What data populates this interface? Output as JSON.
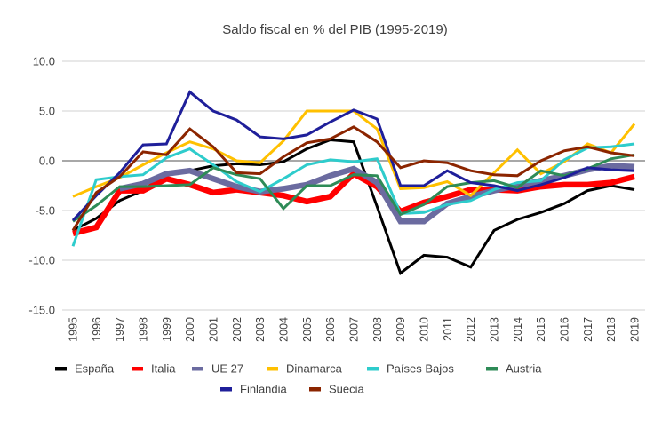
{
  "chart_data": {
    "type": "line",
    "title": "Saldo fiscal en % del PIB (1995-2019)",
    "xlabel": "",
    "ylabel": "",
    "ylim": [
      -15,
      10
    ],
    "yticks": [
      10,
      5,
      0,
      -5,
      -10,
      -15
    ],
    "ytick_labels": [
      "10.0",
      "5.0",
      "0.0",
      "-5.0",
      "-10.0",
      "-15.0"
    ],
    "grid": true,
    "legend_position": "bottom",
    "x": [
      "1995",
      "1996",
      "1997",
      "1998",
      "1999",
      "2000",
      "2001",
      "2002",
      "2003",
      "2004",
      "2005",
      "2006",
      "2007",
      "2008",
      "2009",
      "2010",
      "2011",
      "2012",
      "2013",
      "2014",
      "2015",
      "2016",
      "2017",
      "2018",
      "2019"
    ],
    "series": [
      {
        "name": "España",
        "color": "#000000",
        "width": "medium",
        "values": [
          -7.0,
          -5.8,
          -4.0,
          -3.0,
          -1.2,
          -1.0,
          -0.5,
          -0.3,
          -0.4,
          -0.1,
          1.2,
          2.1,
          1.9,
          -4.6,
          -11.3,
          -9.5,
          -9.7,
          -10.7,
          -7.0,
          -5.9,
          -5.2,
          -4.3,
          -3.0,
          -2.5,
          -2.9
        ]
      },
      {
        "name": "Italia",
        "color": "#ff0000",
        "width": "thick",
        "values": [
          -7.3,
          -6.7,
          -3.0,
          -3.0,
          -1.8,
          -2.4,
          -3.2,
          -2.9,
          -3.2,
          -3.5,
          -4.1,
          -3.6,
          -1.3,
          -2.6,
          -5.1,
          -4.2,
          -3.6,
          -2.9,
          -2.9,
          -3.0,
          -2.6,
          -2.4,
          -2.4,
          -2.2,
          -1.6
        ]
      },
      {
        "name": "UE 27",
        "color": "#6b6ba0",
        "width": "thick",
        "values": [
          null,
          null,
          -2.8,
          -2.3,
          -1.3,
          -1.0,
          -1.8,
          -2.6,
          -3.1,
          -2.8,
          -2.4,
          -1.5,
          -0.8,
          -2.2,
          -6.1,
          -6.1,
          -4.3,
          -3.6,
          -3.0,
          -2.5,
          -2.0,
          -1.5,
          -0.9,
          -0.5,
          -0.6
        ]
      },
      {
        "name": "Dinamarca",
        "color": "#ffc000",
        "width": "medium",
        "values": [
          -3.6,
          -2.6,
          -1.7,
          -0.4,
          0.8,
          1.9,
          1.2,
          0.0,
          -0.2,
          2.0,
          5.0,
          5.0,
          5.0,
          3.2,
          -2.8,
          -2.7,
          -2.1,
          -3.5,
          -1.2,
          1.1,
          -1.3,
          -0.1,
          1.7,
          0.8,
          3.7
        ]
      },
      {
        "name": "Países Bajos",
        "color": "#2ecccc",
        "width": "medium",
        "values": [
          -8.6,
          -1.9,
          -1.6,
          -1.4,
          0.3,
          1.2,
          -0.4,
          -2.1,
          -3.1,
          -1.8,
          -0.4,
          0.1,
          -0.1,
          0.2,
          -5.3,
          -5.2,
          -4.4,
          -4.0,
          -2.9,
          -2.2,
          -2.0,
          0.1,
          1.3,
          1.4,
          1.7
        ]
      },
      {
        "name": "Austria",
        "color": "#2e8b57",
        "width": "medium",
        "values": [
          -6.1,
          -4.5,
          -2.6,
          -2.6,
          -2.5,
          -2.4,
          -0.7,
          -1.4,
          -1.8,
          -4.8,
          -2.5,
          -2.5,
          -1.4,
          -1.5,
          -5.4,
          -4.4,
          -2.6,
          -2.2,
          -2.0,
          -2.7,
          -1.0,
          -1.5,
          -0.8,
          0.2,
          0.6
        ]
      },
      {
        "name": "Finlandia",
        "color": "#1f1f9a",
        "width": "medium",
        "values": [
          -6.0,
          -3.5,
          -1.2,
          1.6,
          1.7,
          6.9,
          5.0,
          4.1,
          2.4,
          2.2,
          2.6,
          3.9,
          5.1,
          4.2,
          -2.5,
          -2.5,
          -1.0,
          -2.2,
          -2.5,
          -3.0,
          -2.4,
          -1.7,
          -0.7,
          -0.9,
          -1.0
        ]
      },
      {
        "name": "Suecia",
        "color": "#8b2500",
        "width": "medium",
        "values": [
          -7.0,
          -3.2,
          -1.6,
          0.9,
          0.6,
          3.2,
          1.4,
          -1.2,
          -1.3,
          0.4,
          1.8,
          2.2,
          3.4,
          1.9,
          -0.7,
          0.0,
          -0.2,
          -1.0,
          -1.4,
          -1.5,
          0.0,
          1.0,
          1.4,
          0.8,
          0.5
        ]
      }
    ]
  }
}
